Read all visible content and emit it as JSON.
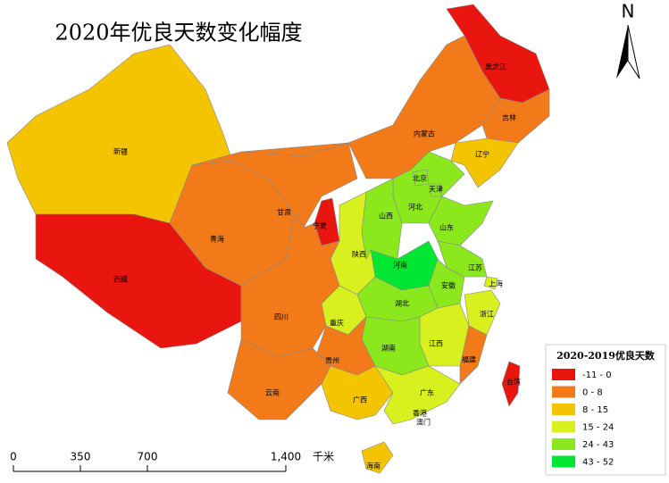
{
  "title": "2020年优良天数变化幅度",
  "north": "N",
  "legend": {
    "title": "2020-2019优良天数",
    "items": [
      {
        "label": "-11 - 0",
        "color": "#e8160f"
      },
      {
        "label": "0 - 8",
        "color": "#f27a19"
      },
      {
        "label": "8 - 15",
        "color": "#f5c400"
      },
      {
        "label": "15 - 24",
        "color": "#d8f01e"
      },
      {
        "label": "24 - 43",
        "color": "#8ae81c"
      },
      {
        "label": "43 - 52",
        "color": "#00e632"
      }
    ]
  },
  "scale_bar": {
    "ticks": [
      "0",
      "350",
      "700",
      "1,400"
    ],
    "unit": "千米"
  },
  "regions": [
    {
      "name": "新疆",
      "class": 2
    },
    {
      "name": "西藏",
      "class": 0
    },
    {
      "name": "青海",
      "class": 1
    },
    {
      "name": "甘肃",
      "class": 1
    },
    {
      "name": "内蒙古",
      "class": 1
    },
    {
      "name": "黑龙江",
      "class": 0
    },
    {
      "name": "吉林",
      "class": 1
    },
    {
      "name": "辽宁",
      "class": 2
    },
    {
      "name": "河北",
      "class": 4
    },
    {
      "name": "北京",
      "class": 4
    },
    {
      "name": "天津",
      "class": 4
    },
    {
      "name": "山西",
      "class": 4
    },
    {
      "name": "山东",
      "class": 4
    },
    {
      "name": "河南",
      "class": 5
    },
    {
      "name": "陕西",
      "class": 3
    },
    {
      "name": "宁夏",
      "class": 0
    },
    {
      "name": "江苏",
      "class": 4
    },
    {
      "name": "上海",
      "class": 3
    },
    {
      "name": "安徽",
      "class": 4
    },
    {
      "name": "湖北",
      "class": 4
    },
    {
      "name": "重庆",
      "class": 3
    },
    {
      "name": "四川",
      "class": 1
    },
    {
      "name": "浙江",
      "class": 3
    },
    {
      "name": "江西",
      "class": 3
    },
    {
      "name": "湖南",
      "class": 4
    },
    {
      "name": "福建",
      "class": 1
    },
    {
      "name": "贵州",
      "class": 1
    },
    {
      "name": "云南",
      "class": 1
    },
    {
      "name": "广西",
      "class": 2
    },
    {
      "name": "广东",
      "class": 3
    },
    {
      "name": "海南",
      "class": 2
    },
    {
      "name": "台湾",
      "class": 0
    }
  ],
  "other_labels": [
    "香港",
    "澳门"
  ]
}
